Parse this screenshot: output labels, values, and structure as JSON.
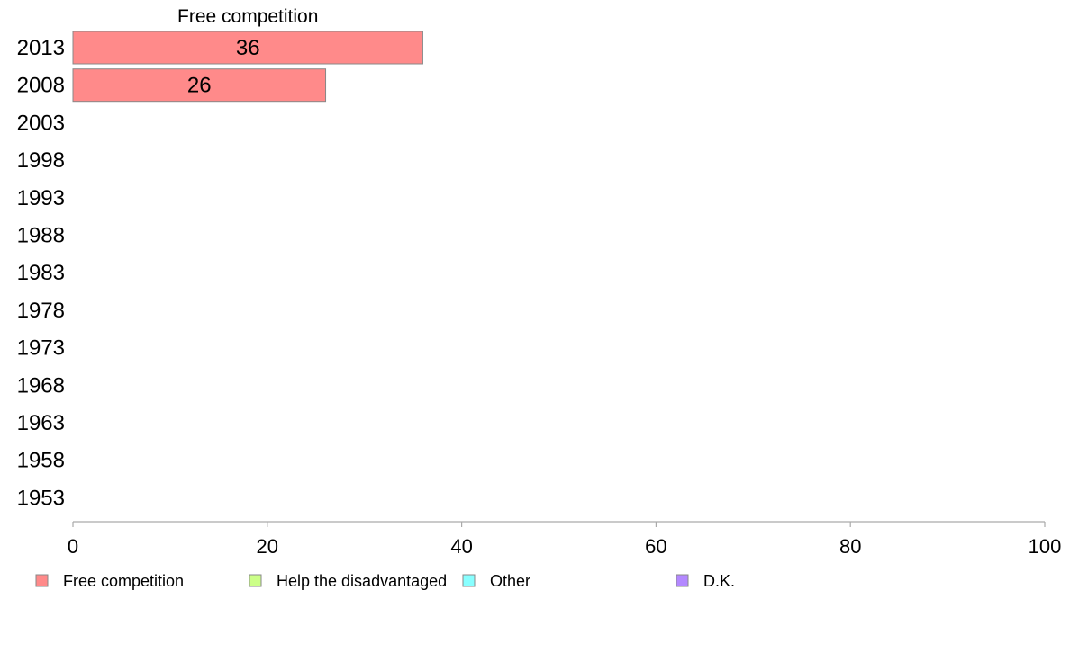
{
  "chart_data": {
    "type": "bar",
    "orientation": "horizontal",
    "categories": [
      "2013",
      "2008",
      "2003",
      "1998",
      "1993",
      "1988",
      "1983",
      "1978",
      "1973",
      "1968",
      "1963",
      "1958",
      "1953"
    ],
    "series": [
      {
        "name": "Free competition",
        "color": "#ff8a8a",
        "values": [
          36,
          26,
          null,
          null,
          null,
          null,
          null,
          null,
          null,
          null,
          null,
          null,
          null
        ]
      },
      {
        "name": "Help the disadvantaged",
        "color": "#ccff88",
        "values": [
          null,
          null,
          null,
          null,
          null,
          null,
          null,
          null,
          null,
          null,
          null,
          null,
          null
        ]
      },
      {
        "name": "Other",
        "color": "#88ffff",
        "values": [
          null,
          null,
          null,
          null,
          null,
          null,
          null,
          null,
          null,
          null,
          null,
          null,
          null
        ]
      },
      {
        "name": "D.K.",
        "color": "#b388ff",
        "values": [
          null,
          null,
          null,
          null,
          null,
          null,
          null,
          null,
          null,
          null,
          null,
          null,
          null
        ]
      }
    ],
    "panel_title": "Free competition",
    "xlim": [
      0,
      100
    ],
    "xticks": [
      0,
      20,
      40,
      60,
      80,
      100
    ],
    "grid": false,
    "legend_position": "bottom"
  }
}
